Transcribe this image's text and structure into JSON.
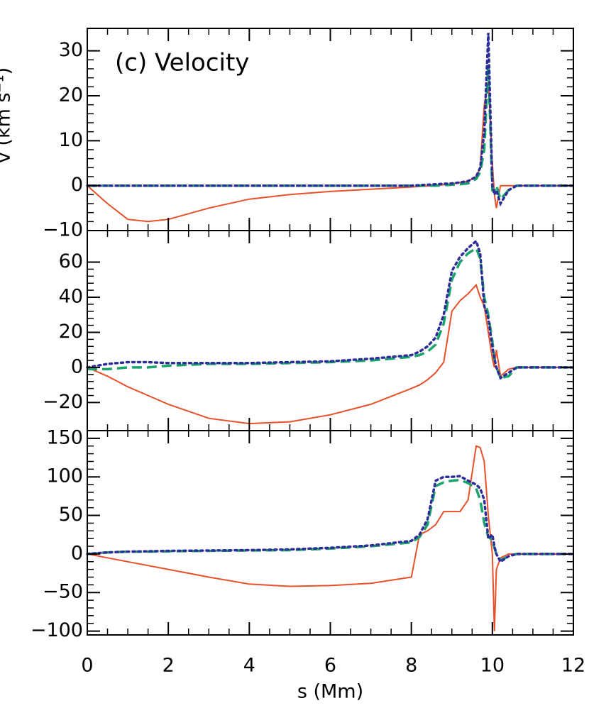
{
  "chart_data": [
    {
      "type": "line",
      "annotation": "(c) Velocity",
      "ylabel": "v (km s⁻¹)",
      "x": [
        0,
        0.5,
        1,
        1.5,
        2,
        3,
        4,
        5,
        6,
        7,
        8,
        8.2,
        8.4,
        8.6,
        8.8,
        9,
        9.2,
        9.4,
        9.6,
        9.7,
        9.8,
        9.9,
        10,
        10.05,
        10.1,
        10.2,
        10.4,
        10.6,
        11,
        12
      ],
      "xlim": [
        0,
        12
      ],
      "xticks": [
        0,
        2,
        4,
        6,
        8,
        10,
        12
      ],
      "ylim": [
        -10,
        35
      ],
      "yticks": [
        {
          "value": -10,
          "label": "−10"
        },
        0,
        10,
        20,
        30
      ],
      "series": [
        {
          "color": "#e8502a",
          "style": "solid",
          "values": [
            0,
            -4,
            -7.5,
            -8,
            -7.5,
            -5,
            -3,
            -2,
            -1.3,
            -0.8,
            -0.3,
            -0.2,
            -0.1,
            0,
            0.2,
            0.4,
            0.7,
            1,
            2,
            4,
            18,
            23,
            5,
            -2,
            -5,
            0,
            0,
            0,
            0,
            0
          ]
        },
        {
          "color": "#1aa36b",
          "style": "dashed",
          "values": [
            0,
            0,
            0,
            0,
            0,
            0,
            0,
            0,
            0,
            0,
            0,
            0,
            0,
            0,
            0.1,
            0.2,
            0.3,
            0.5,
            1.5,
            3,
            8,
            27,
            -1,
            -1,
            0,
            -3,
            -1,
            0,
            0,
            0
          ]
        },
        {
          "color": "#2e2e99",
          "style": "dotted",
          "values": [
            0,
            0,
            0,
            0,
            0,
            0,
            0,
            0,
            0,
            0,
            0,
            0.1,
            0.2,
            0.3,
            0.4,
            0.5,
            0.7,
            1,
            2,
            4,
            12,
            34,
            0,
            -2,
            -1,
            -4,
            -1,
            0,
            0,
            0
          ]
        }
      ]
    },
    {
      "type": "line",
      "x": [
        0,
        0.5,
        1,
        1.5,
        2,
        3,
        4,
        5,
        6,
        7,
        8,
        8.2,
        8.4,
        8.6,
        8.8,
        9,
        9.2,
        9.4,
        9.6,
        9.7,
        9.8,
        9.9,
        10,
        10.05,
        10.1,
        10.2,
        10.4,
        10.6,
        11,
        12
      ],
      "xlim": [
        0,
        12
      ],
      "xticks": [
        0,
        2,
        4,
        6,
        8,
        10,
        12
      ],
      "ylim": [
        -36,
        78
      ],
      "yticks": [
        {
          "value": -20,
          "label": "−20"
        },
        0,
        20,
        40,
        60
      ],
      "series": [
        {
          "color": "#e8502a",
          "style": "solid",
          "values": [
            0,
            -5,
            -11,
            -16,
            -21,
            -29,
            -32,
            -31,
            -27,
            -21,
            -12,
            -10,
            -7,
            -3,
            3,
            32,
            38,
            42,
            47,
            40,
            35,
            20,
            5,
            0,
            10,
            -5,
            -1,
            0,
            0,
            0
          ]
        },
        {
          "color": "#1aa36b",
          "style": "dashed",
          "values": [
            -1,
            -1,
            0,
            0,
            1,
            2,
            2,
            2.5,
            3,
            4,
            6,
            7,
            9,
            13,
            25,
            50,
            60,
            65,
            68,
            62,
            40,
            30,
            15,
            5,
            0,
            -6,
            -5,
            0,
            0,
            0
          ]
        },
        {
          "color": "#2e2e99",
          "style": "dotted",
          "values": [
            0,
            2,
            3,
            3,
            2.5,
            2.5,
            2.5,
            3,
            3.5,
            5,
            7,
            9,
            12,
            17,
            30,
            55,
            63,
            68,
            72,
            65,
            35,
            28,
            12,
            5,
            0,
            -6,
            -3,
            0,
            0,
            0
          ]
        }
      ]
    },
    {
      "type": "line",
      "xlabel": "s (Mm)",
      "x": [
        0,
        0.5,
        1,
        1.5,
        2,
        3,
        4,
        5,
        6,
        7,
        8,
        8.2,
        8.4,
        8.6,
        8.8,
        9,
        9.2,
        9.4,
        9.6,
        9.7,
        9.8,
        9.9,
        10,
        10.05,
        10.1,
        10.2,
        10.4,
        10.6,
        11,
        12
      ],
      "xlim": [
        0,
        12
      ],
      "xticks": [
        0,
        2,
        4,
        6,
        8,
        10,
        12
      ],
      "ylim": [
        -105,
        160
      ],
      "yticks": [
        {
          "value": -100,
          "label": "−100"
        },
        {
          "value": -50,
          "label": "−50"
        },
        0,
        50,
        100,
        150
      ],
      "series": [
        {
          "color": "#e8502a",
          "style": "solid",
          "values": [
            0,
            -5,
            -10,
            -15,
            -20,
            -30,
            -39,
            -42,
            -41,
            -38,
            -30,
            25,
            30,
            38,
            55,
            55,
            55,
            70,
            140,
            138,
            120,
            50,
            0,
            -100,
            -20,
            -5,
            0,
            0,
            0,
            0
          ]
        },
        {
          "color": "#1aa36b",
          "style": "dashed",
          "values": [
            0,
            2,
            3,
            3,
            3.5,
            4,
            4.5,
            5,
            7,
            10,
            15,
            22,
            38,
            88,
            93,
            95,
            96,
            92,
            85,
            70,
            40,
            22,
            18,
            8,
            0,
            -8,
            -3,
            0,
            0,
            0
          ]
        },
        {
          "color": "#2e2e99",
          "style": "dotted",
          "values": [
            0,
            2,
            3,
            3.5,
            4,
            4.5,
            5,
            6,
            8,
            11,
            17,
            25,
            45,
            95,
            100,
            100,
            101,
            95,
            90,
            85,
            70,
            20,
            25,
            10,
            0,
            -10,
            -3,
            0,
            0,
            0
          ]
        }
      ]
    }
  ]
}
